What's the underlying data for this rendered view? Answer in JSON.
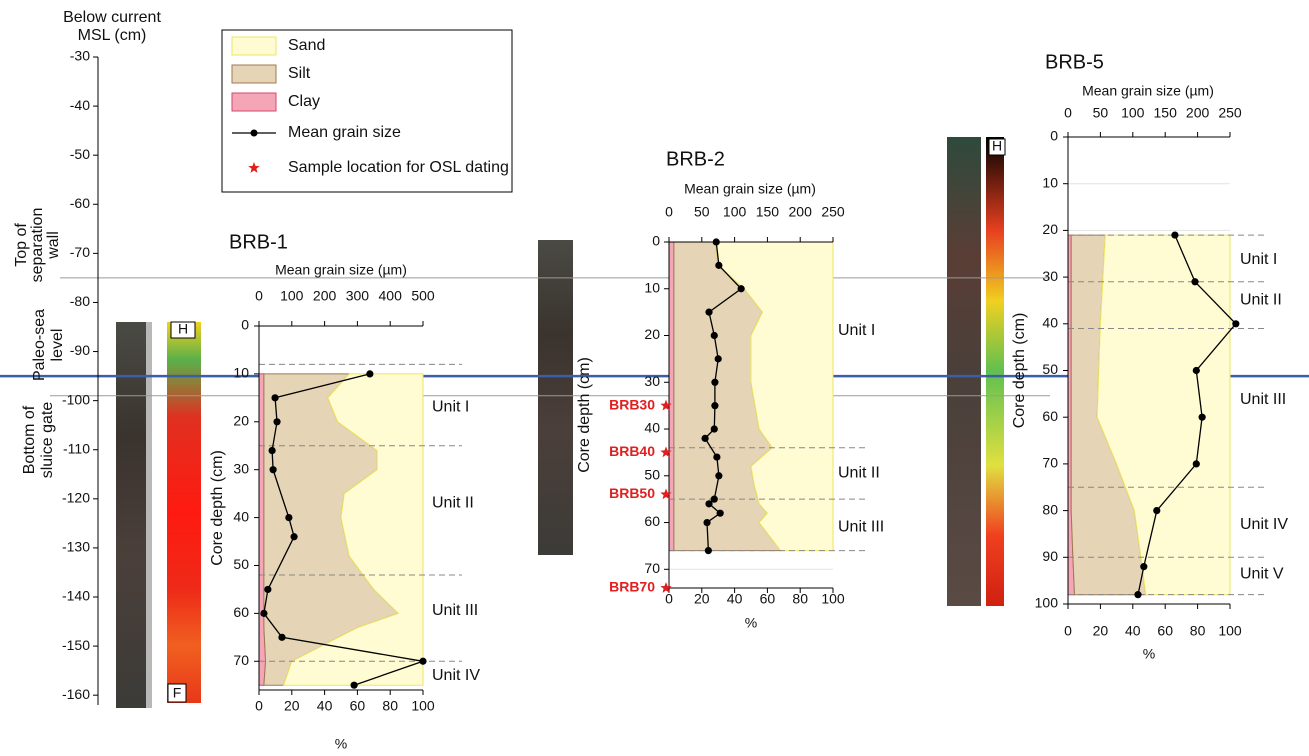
{
  "msl_axis": {
    "title_lines": [
      "Below current",
      "MSL (cm)"
    ],
    "ylim": [
      -30,
      -162
    ],
    "yticks": [
      -30,
      -40,
      -50,
      -60,
      -70,
      -80,
      -90,
      -100,
      -110,
      -120,
      -130,
      -140,
      -150,
      -160
    ]
  },
  "reference_lines": [
    {
      "label_lines": [
        "Top of",
        "separation",
        "wall"
      ],
      "value": -75,
      "color": "#9a9a9a",
      "width": 1
    },
    {
      "label_lines": [
        "Paleo-sea",
        "level"
      ],
      "value": -95,
      "color": "#3b5ea8",
      "width": 2.5
    },
    {
      "label_lines": [
        "Bottom of",
        "sluice gate"
      ],
      "value": -99,
      "color": "#9a9a9a",
      "width": 1
    }
  ],
  "legend": {
    "items": [
      {
        "name": "Sand",
        "color": "#fffbd2",
        "edge": "#eee760"
      },
      {
        "name": "Silt",
        "color": "#e5d4b6",
        "edge": "#a07a54"
      },
      {
        "name": "Clay",
        "color": "#f5a6b6",
        "edge": "#d6456c"
      },
      {
        "name": "Mean grain size",
        "color": "#000000"
      },
      {
        "name": "Sample location for OSL dating",
        "color": "#e02020"
      }
    ]
  },
  "chart_data": [
    {
      "type": "core_profile",
      "title": "BRB-1",
      "x2label": "Mean grain size (µm)",
      "xlabel": "%",
      "ylabel": "Core depth (cm)",
      "image_labels": [
        "H",
        "F"
      ],
      "xlim": [
        0,
        100
      ],
      "xticks": [
        0,
        20,
        40,
        60,
        80,
        100
      ],
      "x2lim": [
        0,
        500
      ],
      "x2ticks": [
        0,
        100,
        200,
        300,
        400,
        500
      ],
      "ylim": [
        0,
        76
      ],
      "yticks": [
        0,
        10,
        20,
        30,
        40,
        50,
        60,
        70
      ],
      "grid": true,
      "depth": [
        10,
        15,
        20,
        26,
        30,
        35,
        40,
        48,
        55,
        60,
        63,
        70,
        75
      ],
      "clay": [
        3,
        3,
        3,
        3,
        3,
        3,
        3,
        3,
        3,
        3,
        3,
        4,
        3
      ],
      "silt": [
        52,
        39,
        45,
        69,
        69,
        49,
        47,
        52,
        67,
        82,
        57,
        16,
        12
      ],
      "sand": [
        45,
        58,
        52,
        28,
        28,
        48,
        50,
        45,
        30,
        15,
        40,
        80,
        85
      ],
      "grain_depth": [
        10,
        15,
        20,
        26,
        30,
        40,
        44,
        55,
        60,
        65,
        70,
        75
      ],
      "grain_size": [
        338,
        49,
        55,
        40,
        43,
        91,
        107,
        27,
        15,
        70,
        500,
        290
      ],
      "boundaries": [
        8,
        25,
        52,
        70
      ],
      "units": [
        {
          "label": "Unit I",
          "depth": 17
        },
        {
          "label": "Unit II",
          "depth": 37
        },
        {
          "label": "Unit III",
          "depth": 59.5
        },
        {
          "label": "Unit IV",
          "depth": 73
        }
      ]
    },
    {
      "type": "core_profile",
      "title": "BRB-2",
      "x2label": "Mean grain size (µm)",
      "xlabel": "%",
      "ylabel": "Core depth (cm)",
      "xlim": [
        0,
        100
      ],
      "xticks": [
        0,
        20,
        40,
        60,
        80,
        100
      ],
      "x2lim": [
        0,
        250
      ],
      "x2ticks": [
        0,
        50,
        100,
        150,
        200,
        250
      ],
      "ylim": [
        0,
        74
      ],
      "yticks": [
        0,
        10,
        20,
        30,
        40,
        50,
        60,
        70
      ],
      "grid": true,
      "depth": [
        0,
        5,
        10,
        15,
        20,
        30,
        40,
        44,
        48,
        52,
        56,
        58,
        60,
        66
      ],
      "clay": [
        3,
        3,
        3,
        3,
        3,
        3,
        3,
        3,
        3,
        3,
        3,
        3,
        3,
        3
      ],
      "silt": [
        25,
        27,
        43,
        54,
        47,
        47,
        52,
        60,
        47,
        49,
        52,
        57,
        52,
        65
      ],
      "sand": [
        72,
        70,
        54,
        43,
        50,
        50,
        45,
        37,
        50,
        48,
        45,
        40,
        45,
        32
      ],
      "grain_depth": [
        0,
        5,
        10,
        15,
        20,
        25,
        30,
        35,
        40,
        42,
        46,
        50,
        55,
        56,
        58,
        60,
        66
      ],
      "grain_size": [
        72,
        76,
        110,
        61,
        69,
        75,
        70,
        70,
        69,
        55,
        73,
        76,
        69,
        61,
        78,
        58,
        60
      ],
      "boundaries": [
        44,
        55,
        66
      ],
      "units": [
        {
          "label": "Unit I",
          "depth": 19
        },
        {
          "label": "Unit II",
          "depth": 49.5
        },
        {
          "label": "Unit III",
          "depth": 61
        }
      ],
      "samples": [
        {
          "label": "BRB30",
          "depth": 35
        },
        {
          "label": "BRB40",
          "depth": 45
        },
        {
          "label": "BRB50",
          "depth": 54
        },
        {
          "label": "BRB70",
          "depth": 74
        }
      ]
    },
    {
      "type": "core_profile",
      "title": "BRB-5",
      "x2label": "Mean grain size (µm)",
      "xlabel": "%",
      "ylabel": "Core depth (cm)",
      "image_labels": [
        "H"
      ],
      "xlim": [
        0,
        100
      ],
      "xticks": [
        0,
        20,
        40,
        60,
        80,
        100
      ],
      "x2lim": [
        0,
        250
      ],
      "x2ticks": [
        0,
        50,
        100,
        150,
        200,
        250
      ],
      "ylim": [
        0,
        100
      ],
      "yticks": [
        0,
        10,
        20,
        30,
        40,
        50,
        60,
        70,
        80,
        90,
        100
      ],
      "grid": true,
      "depth": [
        21,
        40,
        60,
        70,
        80,
        90,
        98
      ],
      "clay": [
        2,
        2,
        2,
        2,
        2,
        3,
        4
      ],
      "silt": [
        21,
        18,
        16,
        28,
        39,
        42,
        44
      ],
      "sand": [
        77,
        80,
        82,
        70,
        59,
        55,
        52
      ],
      "grain_depth": [
        21,
        31,
        40,
        50,
        60,
        70,
        80,
        92,
        98
      ],
      "grain_size": [
        165,
        196,
        259,
        198,
        207,
        198,
        137,
        117,
        108
      ],
      "boundaries": [
        21,
        31,
        41,
        75,
        90,
        98
      ],
      "units": [
        {
          "label": "Unit I",
          "depth": 26.3
        },
        {
          "label": "Unit II",
          "depth": 35
        },
        {
          "label": "Unit III",
          "depth": 56.3
        },
        {
          "label": "Unit IV",
          "depth": 83
        },
        {
          "label": "Unit V",
          "depth": 93.6
        }
      ]
    }
  ]
}
